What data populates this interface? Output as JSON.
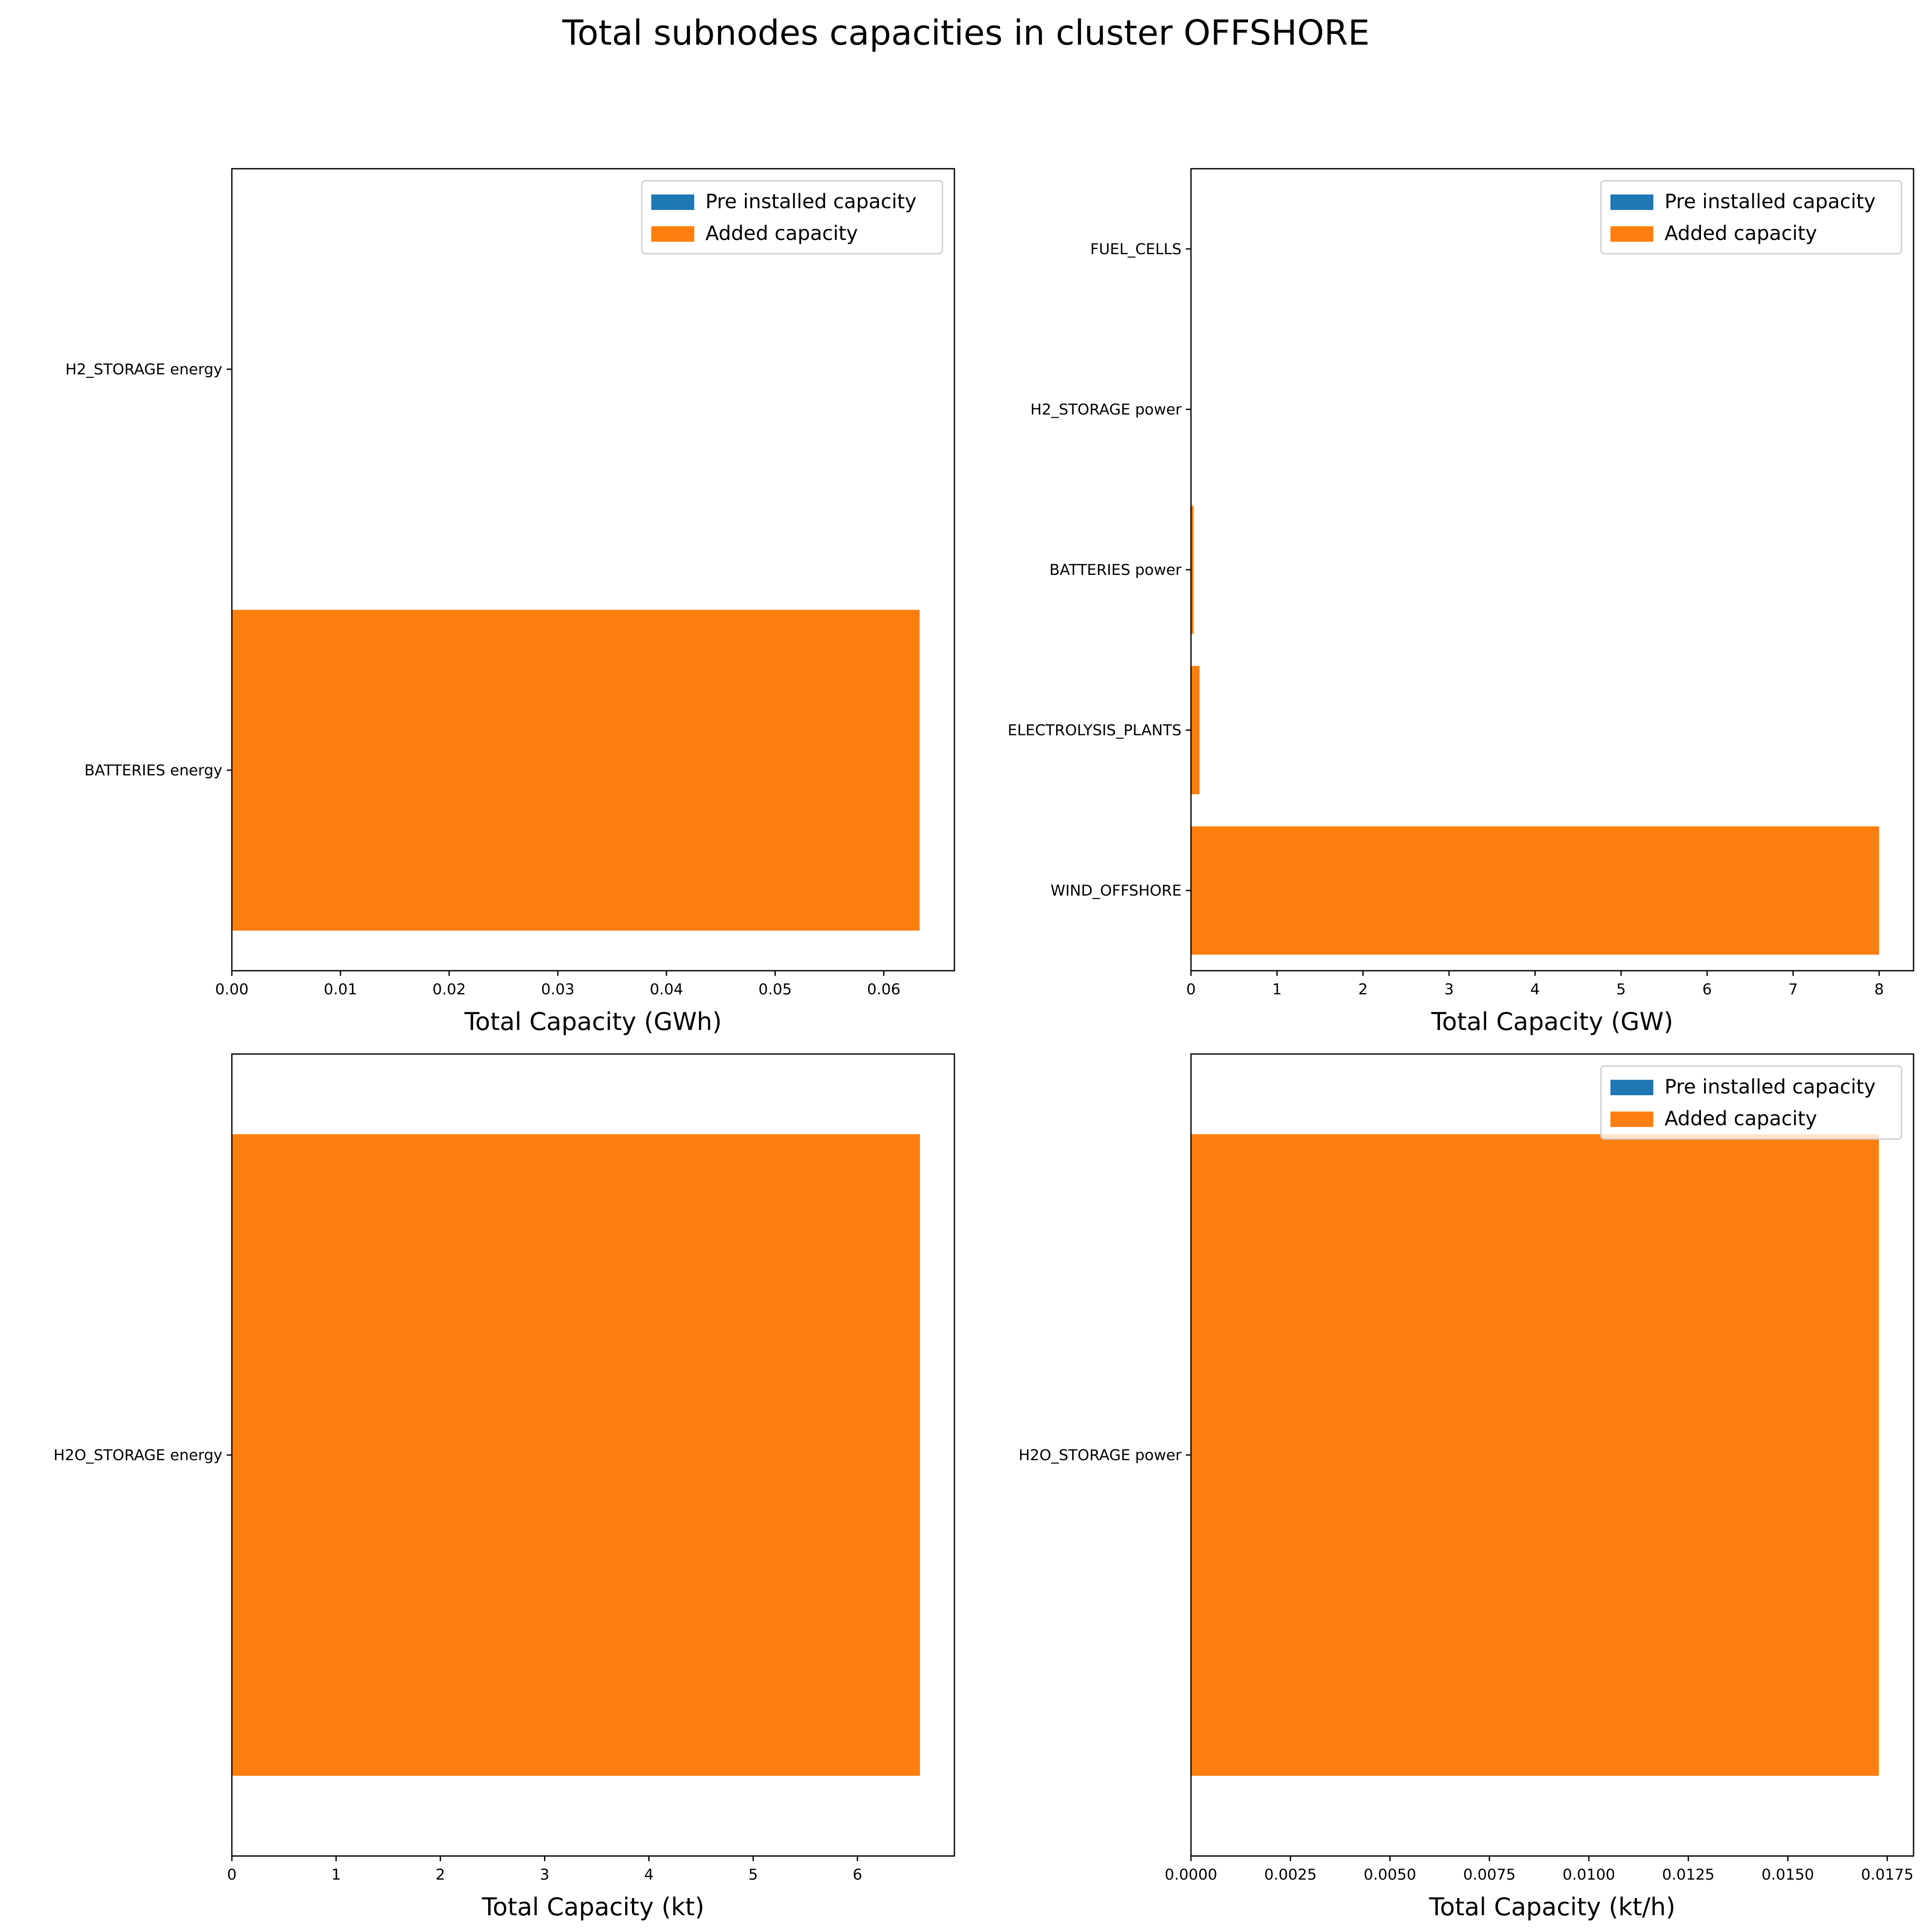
{
  "figure_title": "Total subnodes capacities in cluster OFFSHORE",
  "colors": {
    "pre_installed": "#1f77b4",
    "added": "#ff7f0e"
  },
  "chart_data": [
    {
      "type": "bar",
      "orientation": "horizontal",
      "stacked": true,
      "categories": [
        "BATTERIES energy",
        "H2_STORAGE energy"
      ],
      "series": [
        {
          "name": "Pre installed capacity",
          "values": [
            0,
            0
          ]
        },
        {
          "name": "Added capacity",
          "values": [
            0.0633,
            0
          ]
        }
      ],
      "xlabel": "Total Capacity (GWh)",
      "xlim": [
        0,
        0.0665
      ],
      "xticks": [
        "0.00",
        "0.01",
        "0.02",
        "0.03",
        "0.04",
        "0.05",
        "0.06"
      ],
      "legend": "top-right"
    },
    {
      "type": "bar",
      "orientation": "horizontal",
      "stacked": true,
      "categories": [
        "WIND_OFFSHORE",
        "ELECTROLYSIS_PLANTS",
        "BATTERIES power",
        "H2_STORAGE power",
        "FUEL_CELLS"
      ],
      "series": [
        {
          "name": "Pre installed capacity",
          "values": [
            0,
            0,
            0,
            0,
            0
          ]
        },
        {
          "name": "Added capacity",
          "values": [
            8.0,
            0.1,
            0.03,
            0,
            0
          ]
        }
      ],
      "xlabel": "Total Capacity (GW)",
      "xlim": [
        0,
        8.4
      ],
      "xticks": [
        "0",
        "1",
        "2",
        "3",
        "4",
        "5",
        "6",
        "7",
        "8"
      ],
      "legend": "top-right"
    },
    {
      "type": "bar",
      "orientation": "horizontal",
      "stacked": true,
      "categories": [
        "H2O_STORAGE energy"
      ],
      "series": [
        {
          "name": "Pre installed capacity",
          "values": [
            0
          ]
        },
        {
          "name": "Added capacity",
          "values": [
            6.6
          ]
        }
      ],
      "xlabel": "Total Capacity (kt)",
      "xlim": [
        0,
        6.93
      ],
      "xticks": [
        "0",
        "1",
        "2",
        "3",
        "4",
        "5",
        "6"
      ],
      "legend": "none"
    },
    {
      "type": "bar",
      "orientation": "horizontal",
      "stacked": true,
      "categories": [
        "H2O_STORAGE power"
      ],
      "series": [
        {
          "name": "Pre installed capacity",
          "values": [
            0
          ]
        },
        {
          "name": "Added capacity",
          "values": [
            0.01729
          ]
        }
      ],
      "xlabel": "Total Capacity (kt/h)",
      "xlim": [
        0,
        0.01816
      ],
      "xticks": [
        "0.0000",
        "0.0025",
        "0.0050",
        "0.0075",
        "0.0100",
        "0.0125",
        "0.0150",
        "0.0175"
      ],
      "legend": "top-right"
    }
  ]
}
